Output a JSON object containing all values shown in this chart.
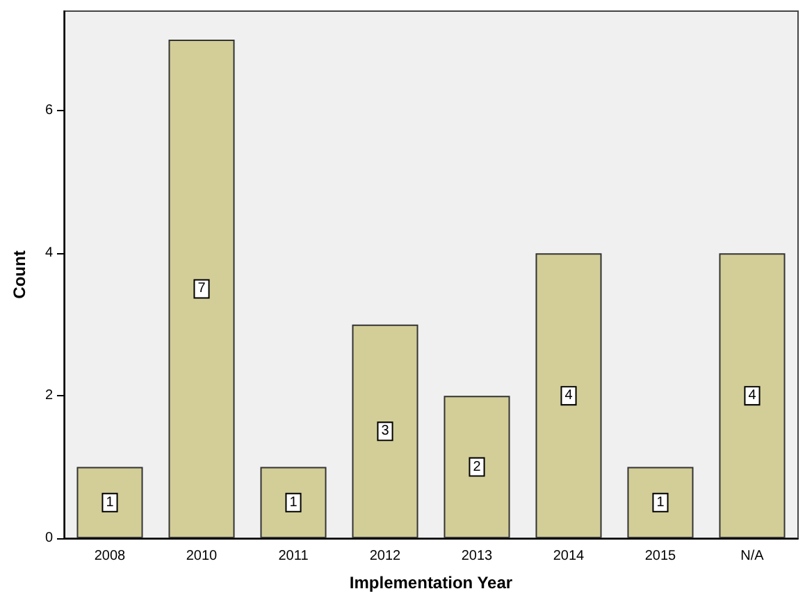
{
  "chart_data": {
    "type": "bar",
    "xlabel": "Implementation Year",
    "ylabel": "Count",
    "categories": [
      "2008",
      "2010",
      "2011",
      "2012",
      "2013",
      "2014",
      "2015",
      "N/A"
    ],
    "values": [
      1,
      7,
      1,
      3,
      2,
      4,
      1,
      4
    ],
    "color": "#d3ce98",
    "ylim": [
      0,
      7.4
    ],
    "yticks": [
      0,
      2,
      4,
      6
    ],
    "grid": false,
    "data_labels": true
  }
}
